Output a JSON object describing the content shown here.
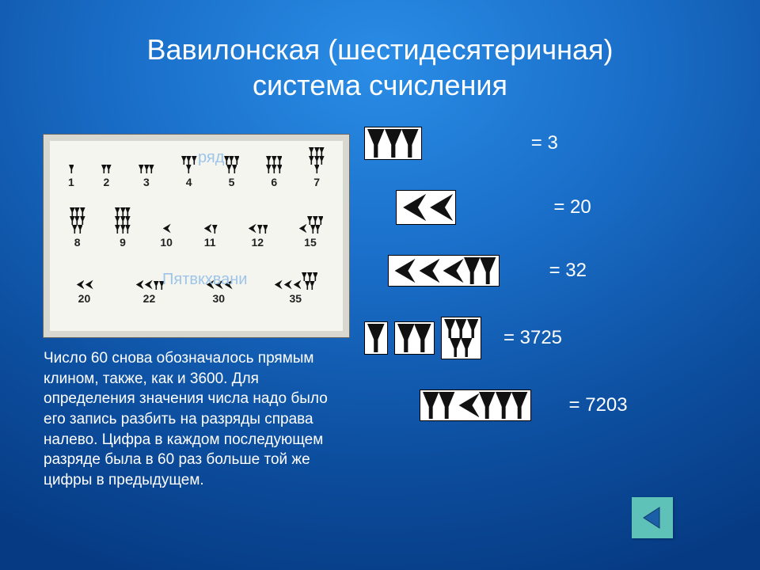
{
  "title_line1": "Вавилонская (шестидесятеричная)",
  "title_line2": "система счисления",
  "overlay1": "ряд",
  "overlay2": "Пятвкхвани",
  "table": {
    "row1": [
      {
        "n": "1",
        "u": 1,
        "t": 0
      },
      {
        "n": "2",
        "u": 2,
        "t": 0
      },
      {
        "n": "3",
        "u": 3,
        "t": 0
      },
      {
        "n": "4",
        "u": 4,
        "t": 0
      },
      {
        "n": "5",
        "u": 5,
        "t": 0
      },
      {
        "n": "6",
        "u": 6,
        "t": 0
      },
      {
        "n": "7",
        "u": 7,
        "t": 0
      }
    ],
    "row2": [
      {
        "n": "8",
        "u": 8,
        "t": 0
      },
      {
        "n": "9",
        "u": 9,
        "t": 0
      },
      {
        "n": "10",
        "u": 0,
        "t": 1
      },
      {
        "n": "11",
        "u": 1,
        "t": 1
      },
      {
        "n": "12",
        "u": 2,
        "t": 1
      },
      {
        "n": "15",
        "u": 5,
        "t": 1
      }
    ],
    "row3": [
      {
        "n": "20",
        "u": 0,
        "t": 2
      },
      {
        "n": "22",
        "u": 2,
        "t": 2
      },
      {
        "n": "30",
        "u": 0,
        "t": 3
      },
      {
        "n": "35",
        "u": 5,
        "t": 3
      }
    ]
  },
  "paragraph": "Число 60 снова обозначалось прямым клином, также, как и 3600. Для определения значения числа надо было его запись разбить на разряды справа налево. Цифра в каждом последующем разряде была в 60 раз больше той же цифры в предыдущем.",
  "examples": [
    {
      "groups": [
        {
          "u": 3,
          "t": 0,
          "big": true
        }
      ],
      "value": "= 3",
      "indent": 0
    },
    {
      "groups": [
        {
          "u": 0,
          "t": 2,
          "big": true
        }
      ],
      "value": "= 20",
      "indent": 40
    },
    {
      "groups": [
        {
          "u": 2,
          "t": 3,
          "big": true
        }
      ],
      "value": "= 32",
      "indent": 40
    },
    {
      "groups": [
        {
          "u": 1,
          "t": 0,
          "big": true
        },
        {
          "u": 2,
          "t": 0,
          "big": true
        },
        {
          "u": 5,
          "t": 0,
          "big": true
        }
      ],
      "value": "= 3725",
      "indent": 10
    },
    {
      "groups": [
        {
          "u": 0,
          "t": 2,
          "big": true,
          "withU": 3
        }
      ],
      "value": "= 7203",
      "indent": 80,
      "special": "7203"
    }
  ],
  "colors": {
    "bg_outer": "#063a82",
    "bg_center": "#2a8de6",
    "white": "#ffffff",
    "nav": "#5fc2b8"
  }
}
